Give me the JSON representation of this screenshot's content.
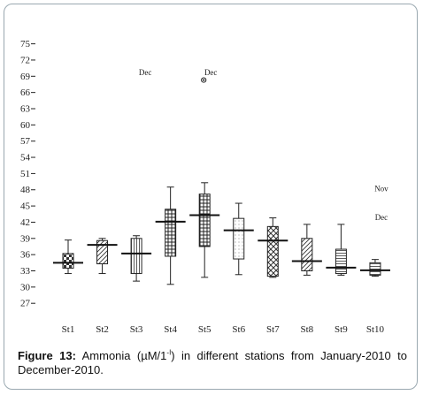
{
  "caption": {
    "label": "Figure 13:",
    "text_before": "Ammonia (µM/1",
    "superscript": "-I",
    "text_after": ") in different stations from January-2010 to December-2010."
  },
  "chart_data": {
    "type": "boxplot",
    "title": "",
    "xlabel": "",
    "ylabel": "",
    "ylim": [
      25,
      76
    ],
    "yticks": [
      27,
      30,
      33,
      36,
      39,
      42,
      45,
      48,
      51,
      54,
      57,
      60,
      63,
      66,
      69,
      72,
      75
    ],
    "grid": false,
    "categories": [
      "St1",
      "St2",
      "St3",
      "St4",
      "St5",
      "St6",
      "St7",
      "St8",
      "St9",
      "St10"
    ],
    "boxes": [
      {
        "station": "St1",
        "whisker_low": 32.5,
        "q1": 33.5,
        "median": 34.5,
        "q3": 36.2,
        "whisker_high": 38.7,
        "pattern": "checker"
      },
      {
        "station": "St2",
        "whisker_low": 32.5,
        "q1": 34.3,
        "median": 37.8,
        "q3": 38.6,
        "whisker_high": 39.0,
        "pattern": "diagonal"
      },
      {
        "station": "St3",
        "whisker_low": 31.1,
        "q1": 32.5,
        "median": 36.2,
        "q3": 39.0,
        "whisker_high": 39.5,
        "pattern": "vertical"
      },
      {
        "station": "St4",
        "whisker_low": 30.5,
        "q1": 35.7,
        "median": 42.1,
        "q3": 44.4,
        "whisker_high": 48.5,
        "pattern": "crosshatch"
      },
      {
        "station": "St5",
        "whisker_low": 31.8,
        "q1": 37.5,
        "median": 43.3,
        "q3": 47.2,
        "whisker_high": 49.3,
        "pattern": "crosshatch"
      },
      {
        "station": "St6",
        "whisker_low": 32.3,
        "q1": 35.2,
        "median": 40.5,
        "q3": 42.7,
        "whisker_high": 45.5,
        "pattern": "dotted"
      },
      {
        "station": "St7",
        "whisker_low": 31.8,
        "q1": 32.0,
        "median": 38.6,
        "q3": 41.2,
        "whisker_high": 42.8,
        "pattern": "cross-diagonal"
      },
      {
        "station": "St8",
        "whisker_low": 32.2,
        "q1": 33.0,
        "median": 34.8,
        "q3": 39.0,
        "whisker_high": 41.6,
        "pattern": "diagonal"
      },
      {
        "station": "St9",
        "whisker_low": 32.2,
        "q1": 32.5,
        "median": 33.6,
        "q3": 37.0,
        "whisker_high": 41.6,
        "pattern": "horizontal"
      },
      {
        "station": "St10",
        "whisker_low": 32.0,
        "q1": 32.2,
        "median": 33.1,
        "q3": 34.5,
        "whisker_high": 35.1,
        "pattern": "horizontal"
      }
    ],
    "outliers": [
      {
        "station": "St5",
        "value": 68.3,
        "label": "Dec"
      }
    ],
    "annotations": [
      {
        "station": "St3",
        "value": 69.7,
        "text": "Dec"
      },
      {
        "station": "St5",
        "value": 69.7,
        "text": "Dec"
      },
      {
        "station": "St10",
        "value": 48.2,
        "text": "Nov"
      },
      {
        "station": "St10",
        "value": 42.9,
        "text": "Dec"
      }
    ]
  }
}
